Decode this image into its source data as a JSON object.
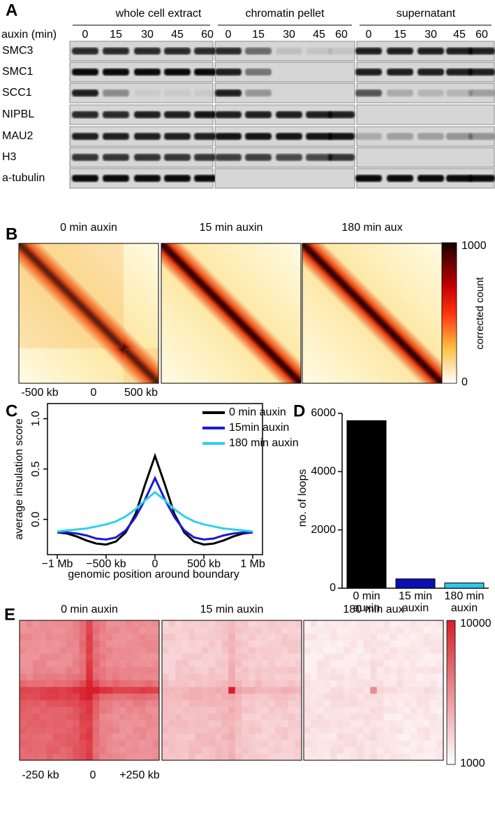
{
  "panel_a": {
    "label": "A",
    "axis_label": "auxin (min)",
    "groups": [
      {
        "title": "whole cell extract",
        "timepoints": [
          "0",
          "15",
          "30",
          "45",
          "60"
        ]
      },
      {
        "title": "chromatin pellet",
        "timepoints": [
          "0",
          "15",
          "30",
          "45",
          "60"
        ]
      },
      {
        "title": "supernatant",
        "timepoints": [
          "0",
          "15",
          "30",
          "45",
          "60"
        ]
      }
    ],
    "proteins": [
      "SMC3",
      "SMC1",
      "SCC1",
      "NIPBL",
      "MAU2",
      "H3",
      "a-tubulin"
    ]
  },
  "panel_b": {
    "label": "B",
    "maps": [
      "0 min auxin",
      "15 min auxin",
      "180 min aux"
    ],
    "x_labels": [
      "-500 kb",
      "0",
      "500 kb"
    ],
    "colorbar": {
      "title": "corrected count",
      "max": 1000,
      "min": 0
    }
  },
  "chart_data": [
    {
      "type": "line",
      "panel_label": "C",
      "ylabel": "average insulation score",
      "xlabel": "genomic position around boundary",
      "x": [
        -1000,
        -900,
        -800,
        -700,
        -600,
        -500,
        -400,
        -300,
        -200,
        -100,
        0,
        100,
        200,
        300,
        400,
        500,
        600,
        700,
        800,
        900,
        1000
      ],
      "series": [
        {
          "name": "0 min auxin",
          "color": "#000000",
          "values": [
            -0.13,
            -0.14,
            -0.17,
            -0.21,
            -0.24,
            -0.25,
            -0.22,
            -0.13,
            0.05,
            0.35,
            0.63,
            0.35,
            0.05,
            -0.13,
            -0.22,
            -0.25,
            -0.24,
            -0.21,
            -0.17,
            -0.14,
            -0.13
          ]
        },
        {
          "name": "15min auxin",
          "color": "#1a1ad0",
          "values": [
            -0.13,
            -0.13,
            -0.14,
            -0.16,
            -0.19,
            -0.2,
            -0.18,
            -0.11,
            0.02,
            0.2,
            0.41,
            0.2,
            0.02,
            -0.11,
            -0.18,
            -0.2,
            -0.19,
            -0.16,
            -0.14,
            -0.13,
            -0.13
          ]
        },
        {
          "name": "180 min auxin",
          "color": "#30d0e8",
          "values": [
            -0.12,
            -0.11,
            -0.1,
            -0.09,
            -0.07,
            -0.05,
            -0.02,
            0.03,
            0.1,
            0.19,
            0.27,
            0.19,
            0.1,
            0.03,
            -0.02,
            -0.05,
            -0.07,
            -0.09,
            -0.1,
            -0.11,
            -0.12
          ]
        }
      ],
      "xlim": [
        -1100,
        1100
      ],
      "xticks": [
        {
          "value": -1000,
          "label": "−1 Mb"
        },
        {
          "value": -500,
          "label": "−500 kb"
        },
        0,
        {
          "value": 500,
          "label": "500 kb"
        },
        {
          "value": 1000,
          "label": "1 Mb"
        }
      ],
      "ylim": [
        -0.35,
        1.15
      ],
      "yticks": [
        {
          "value": 0,
          "label": "0.0"
        },
        0.5,
        {
          "value": 1,
          "label": "1.0"
        }
      ]
    },
    {
      "type": "bar",
      "panel_label": "D",
      "ylabel": "no. of loops",
      "categories": [
        "0 min auxin",
        "15 min auxin",
        "180 min auxin"
      ],
      "values": [
        5750,
        320,
        180
      ],
      "colors": [
        "#000000",
        "#0c10b0",
        "#33c4e8"
      ],
      "ylim": [
        0,
        6000
      ],
      "yticks": [
        0,
        2000,
        4000,
        6000
      ]
    }
  ],
  "panel_e": {
    "label": "E",
    "maps": [
      "0 min auxin",
      "15 min auxin",
      "180 min aux"
    ],
    "x_labels": [
      "-250 kb",
      "0",
      "+250 kb"
    ],
    "colorbar": {
      "max": 10000,
      "min": 1000
    }
  }
}
